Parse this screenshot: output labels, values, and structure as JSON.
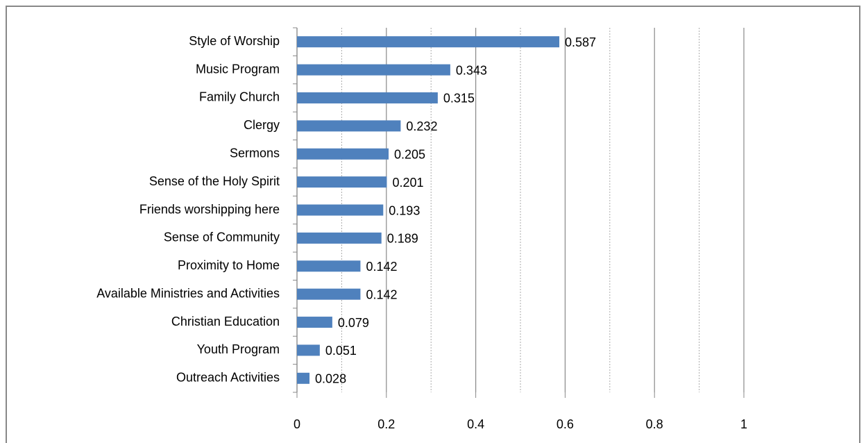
{
  "chart_data": {
    "type": "bar",
    "orientation": "horizontal",
    "categories": [
      "Style of Worship",
      "Music Program",
      "Family Church",
      "Clergy",
      "Sermons",
      "Sense of the Holy Spirit",
      "Friends worshipping here",
      "Sense of Community",
      "Proximity to Home",
      "Available Ministries and Activities",
      "Christian Education",
      "Youth Program",
      "Outreach Activities"
    ],
    "values": [
      0.587,
      0.343,
      0.315,
      0.232,
      0.205,
      0.201,
      0.193,
      0.189,
      0.142,
      0.142,
      0.079,
      0.051,
      0.028
    ],
    "color": "#4f81bd",
    "xlim": [
      0,
      1
    ],
    "xticks": [
      0,
      0.2,
      0.4,
      0.6,
      0.8,
      1
    ],
    "minor_grid": [
      0.1,
      0.3,
      0.5,
      0.7,
      0.9
    ],
    "grid": true
  }
}
